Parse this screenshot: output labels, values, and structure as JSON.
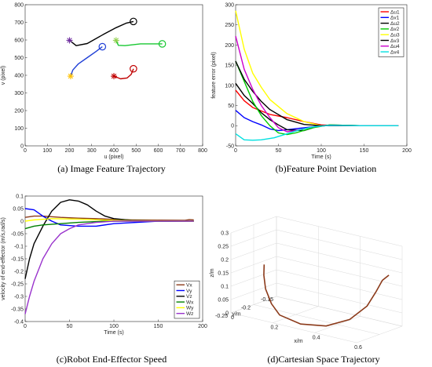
{
  "captions": {
    "a": "(a) Image Feature Trajectory",
    "b": "(b)Feature Point Deviation",
    "c": "(c)Robot End-Effector Speed",
    "d": "(d)Cartesian Space Trajectory"
  },
  "chart_data": [
    {
      "id": "a",
      "type": "line",
      "xlabel": "u (pixel)",
      "ylabel": "v (pixel)",
      "xlim": [
        0,
        800
      ],
      "ylim": [
        0,
        800
      ],
      "xticks": [
        0,
        100,
        200,
        300,
        400,
        500,
        600,
        700,
        800
      ],
      "yticks": [
        0,
        100,
        200,
        300,
        400,
        500,
        600,
        700,
        800
      ],
      "series": [
        {
          "color": "#000000",
          "marker_end": "circle",
          "x": [
            200,
            230,
            280,
            350,
            410,
            455,
            488
          ],
          "y": [
            598,
            568,
            580,
            630,
            670,
            695,
            705
          ]
        },
        {
          "color": "#1f3fd6",
          "marker_end": "circle",
          "x": [
            205,
            215,
            240,
            280,
            320,
            348
          ],
          "y": [
            395,
            430,
            465,
            500,
            535,
            562
          ]
        },
        {
          "color": "#18c832",
          "marker_end": "circle",
          "x": [
            410,
            420,
            450,
            520,
            580,
            618
          ],
          "y": [
            598,
            570,
            568,
            578,
            578,
            578
          ]
        },
        {
          "color": "#c00000",
          "marker_end": "circle",
          "x": [
            400,
            430,
            460,
            478,
            488
          ],
          "y": [
            395,
            380,
            385,
            405,
            437
          ]
        }
      ],
      "start_markers": [
        {
          "x": 200,
          "y": 598,
          "color": "#7030a0"
        },
        {
          "x": 410,
          "y": 598,
          "color": "#92d050"
        },
        {
          "x": 205,
          "y": 395,
          "color": "#ffc000"
        },
        {
          "x": 400,
          "y": 395,
          "color": "#c00000"
        }
      ]
    },
    {
      "id": "b",
      "type": "line",
      "xlabel": "Time (s)",
      "ylabel": "feature error (pixel)",
      "xlim": [
        0,
        200
      ],
      "ylim": [
        -50,
        300
      ],
      "xticks": [
        0,
        50,
        100,
        150,
        200
      ],
      "yticks": [
        -50,
        0,
        50,
        100,
        150,
        200,
        250,
        300
      ],
      "legend_position": "top-right",
      "series": [
        {
          "name": "Δu1",
          "color": "#ff0000",
          "x": [
            0,
            10,
            20,
            40,
            60,
            80,
            100,
            120,
            150,
            190
          ],
          "y": [
            88,
            62,
            45,
            28,
            20,
            10,
            2,
            0,
            0,
            0
          ]
        },
        {
          "name": "Δv1",
          "color": "#0000ff",
          "x": [
            0,
            10,
            20,
            30,
            40,
            50,
            60,
            80,
            100,
            120,
            150,
            190
          ],
          "y": [
            38,
            20,
            10,
            2,
            -8,
            -12,
            -10,
            -5,
            0,
            1,
            0,
            0
          ]
        },
        {
          "name": "Δu2",
          "color": "#000000",
          "x": [
            0,
            10,
            20,
            30,
            40,
            50,
            60,
            80,
            95,
            110,
            150,
            190
          ],
          "y": [
            105,
            75,
            55,
            32,
            15,
            2,
            -10,
            -12,
            -2,
            2,
            0,
            0
          ]
        },
        {
          "name": "Δv2",
          "color": "#00cc00",
          "x": [
            0,
            10,
            20,
            30,
            40,
            50,
            60,
            70,
            90,
            110,
            150,
            190
          ],
          "y": [
            160,
            110,
            60,
            25,
            0,
            -18,
            -22,
            -18,
            -5,
            2,
            0,
            0
          ]
        },
        {
          "name": "Δu3",
          "color": "#ffff00",
          "x": [
            0,
            10,
            20,
            30,
            40,
            60,
            80,
            100,
            120,
            150,
            190
          ],
          "y": [
            285,
            190,
            130,
            95,
            65,
            30,
            10,
            0,
            0,
            0,
            0
          ]
        },
        {
          "name": "Δv3",
          "color": "#000000",
          "x": [
            0,
            10,
            20,
            30,
            40,
            60,
            80,
            100,
            120,
            150,
            190
          ],
          "y": [
            160,
            115,
            85,
            60,
            40,
            15,
            3,
            0,
            0,
            0,
            0
          ]
        },
        {
          "name": "Δu4",
          "color": "#cc00cc",
          "x": [
            0,
            10,
            20,
            30,
            40,
            50,
            60,
            70,
            90,
            110,
            150,
            190
          ],
          "y": [
            222,
            140,
            90,
            50,
            20,
            -5,
            -15,
            -12,
            -3,
            1,
            0,
            0
          ]
        },
        {
          "name": "Δv4",
          "color": "#00e0e0",
          "x": [
            0,
            10,
            20,
            30,
            45,
            60,
            75,
            90,
            110,
            150,
            190
          ],
          "y": [
            -20,
            -35,
            -36,
            -35,
            -30,
            -20,
            -10,
            -3,
            1,
            0,
            0
          ]
        }
      ]
    },
    {
      "id": "c",
      "type": "line",
      "xlabel": "Time (s)",
      "ylabel": "velocity of end-effector (m/s,rad/s)",
      "xlim": [
        0,
        200
      ],
      "ylim": [
        -0.4,
        0.1
      ],
      "xticks": [
        0,
        50,
        100,
        150,
        200
      ],
      "yticks": [
        -0.4,
        -0.35,
        -0.3,
        -0.25,
        -0.2,
        -0.15,
        -0.1,
        -0.05,
        0,
        0.05,
        0.1
      ],
      "legend_position": "bottom-right",
      "series": [
        {
          "name": "Vx",
          "color": "#8b3a1a",
          "x": [
            0,
            10,
            20,
            40,
            60,
            80,
            100,
            120,
            150,
            180,
            185,
            190
          ],
          "y": [
            0.015,
            0.02,
            0.02,
            0.015,
            0.012,
            0.01,
            0.007,
            0.005,
            0.004,
            0.003,
            0.006,
            0.005
          ]
        },
        {
          "name": "Vy",
          "color": "#0000ff",
          "x": [
            0,
            10,
            20,
            30,
            40,
            60,
            80,
            100,
            150,
            190
          ],
          "y": [
            0.05,
            0.045,
            0.02,
            0.0,
            -0.015,
            -0.02,
            -0.02,
            -0.01,
            0.0,
            0.0
          ]
        },
        {
          "name": "Vz",
          "color": "#000000",
          "x": [
            0,
            5,
            10,
            20,
            30,
            40,
            50,
            60,
            70,
            80,
            90,
            100,
            120,
            150,
            190
          ],
          "y": [
            -0.23,
            -0.15,
            -0.09,
            -0.02,
            0.04,
            0.075,
            0.085,
            0.08,
            0.065,
            0.04,
            0.02,
            0.01,
            0.003,
            0.0,
            0.0
          ]
        },
        {
          "name": "Wx",
          "color": "#008000",
          "x": [
            0,
            10,
            20,
            40,
            60,
            90,
            120,
            190
          ],
          "y": [
            -0.03,
            -0.02,
            -0.015,
            -0.01,
            -0.005,
            0.0,
            0.0,
            0.0
          ]
        },
        {
          "name": "Wy",
          "color": "#ffff00",
          "x": [
            0,
            10,
            30,
            60,
            90,
            120,
            190
          ],
          "y": [
            0.0,
            0.005,
            0.01,
            0.008,
            0.004,
            0.002,
            0.0
          ]
        },
        {
          "name": "Wz",
          "color": "#9933cc",
          "x": [
            0,
            5,
            10,
            20,
            30,
            40,
            50,
            60,
            80,
            100,
            150,
            190
          ],
          "y": [
            -0.37,
            -0.3,
            -0.24,
            -0.15,
            -0.09,
            -0.05,
            -0.03,
            -0.015,
            -0.005,
            0.0,
            0.0,
            0.0
          ]
        }
      ]
    },
    {
      "id": "d",
      "type": "line3d",
      "xlabel": "x/m",
      "ylabel": "y/m",
      "zlabel": "z/m",
      "xlim": [
        0,
        0.6
      ],
      "ylim": [
        -0.25,
        -0.15
      ],
      "zlim": [
        0,
        0.3
      ],
      "xticks": [
        0,
        0.2,
        0.4,
        0.6
      ],
      "yticks": [
        -0.25,
        -0.2,
        -0.15
      ],
      "zticks": [
        0,
        0.05,
        0.1,
        0.15,
        0.2,
        0.25,
        0.3
      ],
      "series": [
        {
          "color": "#8b3a1a",
          "x": [
            0.05,
            0.07,
            0.1,
            0.15,
            0.2,
            0.3,
            0.4,
            0.48,
            0.53,
            0.55,
            0.56,
            0.58
          ],
          "y": [
            -0.2,
            -0.21,
            -0.22,
            -0.23,
            -0.235,
            -0.235,
            -0.225,
            -0.21,
            -0.195,
            -0.185,
            -0.175,
            -0.17
          ],
          "z": [
            0.16,
            0.13,
            0.09,
            0.05,
            0.02,
            0.005,
            0.01,
            0.04,
            0.09,
            0.14,
            0.18,
            0.2
          ]
        }
      ]
    }
  ]
}
